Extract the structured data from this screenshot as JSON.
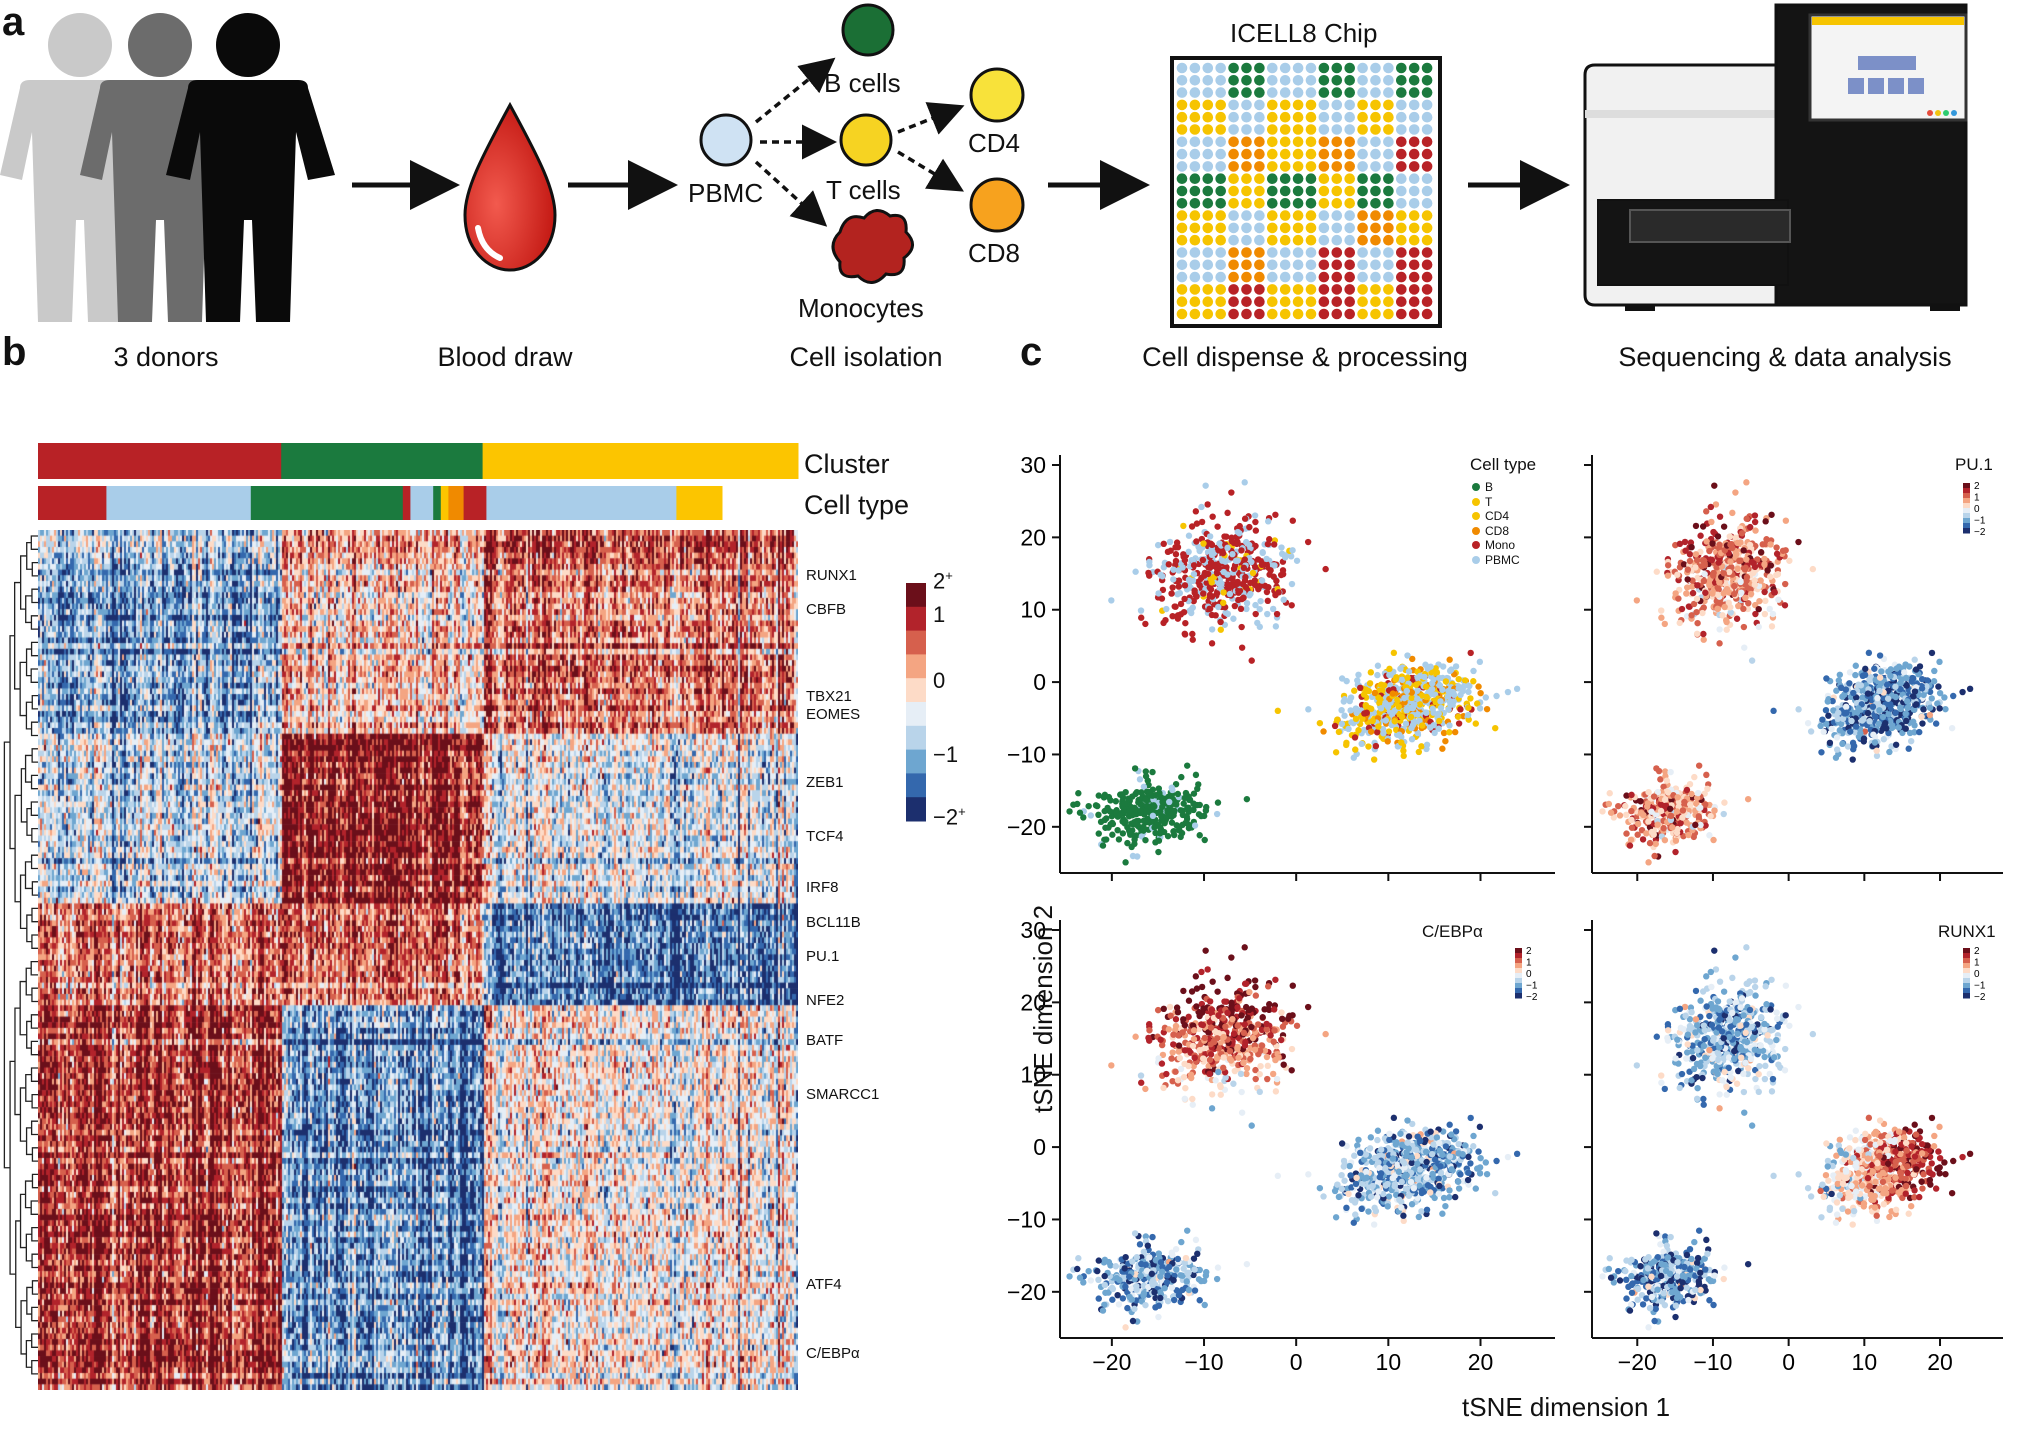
{
  "panels": {
    "a": "a",
    "b": "b",
    "c": "c"
  },
  "workflow": {
    "steps": [
      "3 donors",
      "Blood draw",
      "Cell isolation",
      "Cell dispense & processing",
      "Sequencing & data analysis"
    ],
    "cells": {
      "pbmc": "PBMC",
      "b": "B cells",
      "t": "T cells",
      "mono": "Monocytes",
      "cd4": "CD4",
      "cd8": "CD8"
    },
    "chip_title": "ICELL8 Chip",
    "colors": {
      "b": "#1b7a3e",
      "t": "#f6c400",
      "cd4": "#f6c400",
      "cd8": "#f08a00",
      "mono": "#b82226",
      "pbmc": "#a9cde9"
    }
  },
  "chart_data": [
    {
      "type": "heatmap",
      "annotations": {
        "cluster_label": "Cluster",
        "celltype_label": "Cell type",
        "cluster_blocks": [
          {
            "name": "Mono",
            "fraction": 0.32,
            "color": "#b82226"
          },
          {
            "name": "B",
            "fraction": 0.265,
            "color": "#1b7a3e"
          },
          {
            "name": "T",
            "fraction": 0.415,
            "color": "#fcc500"
          }
        ],
        "celltype_blocks": [
          {
            "fraction": 0.09,
            "color": "#b82226"
          },
          {
            "fraction": 0.19,
            "color": "#a9cde9"
          },
          {
            "fraction": 0.2,
            "color": "#1b7a3e"
          },
          {
            "fraction": 0.01,
            "color": "#b82226"
          },
          {
            "fraction": 0.03,
            "color": "#a9cde9"
          },
          {
            "fraction": 0.01,
            "color": "#1b7a3e"
          },
          {
            "fraction": 0.01,
            "color": "#fcc500"
          },
          {
            "fraction": 0.02,
            "color": "#f08a00"
          },
          {
            "fraction": 0.03,
            "color": "#b82226"
          },
          {
            "fraction": 0.25,
            "color": "#a9cde9"
          },
          {
            "fraction": 0.06,
            "color": "#fcc500"
          }
        ]
      },
      "gene_labels": [
        "RUNX1",
        "CBFB",
        "TBX21",
        "EOMES",
        "ZEB1",
        "TCF4",
        "IRF8",
        "BCL11B",
        "PU.1",
        "NFE2",
        "BATF",
        "SMARCC1",
        "ATF4",
        "C/EBPα"
      ],
      "row_blocks": [
        {
          "rows": 36,
          "pattern": [
            -1,
            0.3,
            1
          ]
        },
        {
          "rows": 30,
          "pattern": [
            -0.6,
            1.6,
            -0.4
          ]
        },
        {
          "rows": 18,
          "pattern": [
            1,
            1,
            -1.4
          ]
        },
        {
          "rows": 68,
          "pattern": [
            1.5,
            -1.3,
            0
          ]
        }
      ],
      "colorbar": {
        "ticks": [
          {
            "value": "2",
            "sup": "+"
          },
          {
            "value": "1"
          },
          {
            "value": "0"
          },
          {
            "value": "−1"
          },
          {
            "value": "−2",
            "sup": "+"
          }
        ],
        "colors": [
          "#6b0f1a",
          "#b2232b",
          "#d6604d",
          "#f4a582",
          "#fddbc7",
          "#e6eef6",
          "#b9d4ea",
          "#6ea6d0",
          "#3468ad",
          "#1c2f6e"
        ]
      }
    },
    {
      "type": "scatter",
      "subplots": [
        {
          "id": "celltype",
          "legend_title": "Cell type",
          "mode": "categorical"
        },
        {
          "id": "pu1",
          "legend_title": "PU.1",
          "mode": "continuous",
          "gene": "pu1"
        },
        {
          "id": "cebpa",
          "legend_title": "C/EBPα",
          "mode": "continuous",
          "gene": "cebpa"
        },
        {
          "id": "runx1",
          "legend_title": "RUNX1",
          "mode": "continuous",
          "gene": "runx1"
        }
      ],
      "legend_categories": [
        {
          "name": "B",
          "color": "#1b7a3e"
        },
        {
          "name": "T",
          "color": "#f6c400"
        },
        {
          "name": "CD4",
          "color": "#f6c400"
        },
        {
          "name": "CD8",
          "color": "#f08a00"
        },
        {
          "name": "Mono",
          "color": "#b82226"
        },
        {
          "name": "PBMC",
          "color": "#a9cde9"
        }
      ],
      "mini_scale_ticks": [
        "2",
        "1",
        "0",
        "−1",
        "−2"
      ],
      "xlim": [
        -24,
        27
      ],
      "ylim": [
        -25,
        30
      ],
      "xticks": [
        "−20",
        "−10",
        "0",
        "10",
        "20"
      ],
      "yticks": [
        "30",
        "20",
        "10",
        "0",
        "−10",
        "−20"
      ],
      "xlabel": "tSNE dimension 1",
      "ylabel": "tSNE dimension 2",
      "clusters": [
        {
          "name": "Mono",
          "center": [
            -8,
            15
          ],
          "spread": [
            6,
            7
          ],
          "angle": -0.75,
          "n": 520
        },
        {
          "name": "T",
          "center": [
            12,
            -3
          ],
          "spread": [
            7,
            4.5
          ],
          "angle": 0.45,
          "n": 620
        },
        {
          "name": "B",
          "center": [
            -16,
            -18
          ],
          "spread": [
            5.5,
            4
          ],
          "angle": 0.1,
          "n": 320
        }
      ]
    }
  ]
}
